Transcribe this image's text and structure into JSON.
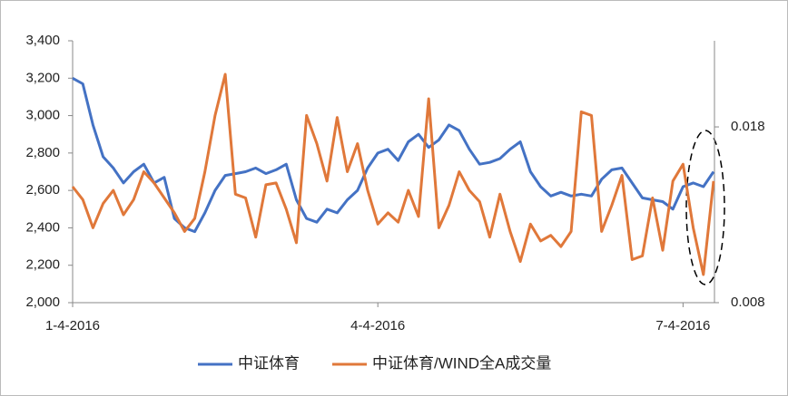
{
  "chart_data": {
    "type": "line",
    "categories": [
      "1-4-2016",
      null,
      null,
      null,
      null,
      null,
      null,
      null,
      null,
      null,
      null,
      null,
      null,
      null,
      null,
      null,
      null,
      null,
      null,
      null,
      null,
      null,
      null,
      null,
      null,
      null,
      null,
      null,
      null,
      null,
      "4-4-2016",
      null,
      null,
      null,
      null,
      null,
      null,
      null,
      null,
      null,
      null,
      null,
      null,
      null,
      null,
      null,
      null,
      null,
      null,
      null,
      null,
      null,
      null,
      null,
      null,
      null,
      null,
      null,
      null,
      null,
      "7-4-2016",
      null,
      null,
      null
    ],
    "series": [
      {
        "name": "中证体育",
        "color": "#4472c4",
        "axis": "y",
        "values": [
          3200,
          3170,
          2950,
          2780,
          2720,
          2640,
          2700,
          2740,
          2640,
          2670,
          2450,
          2400,
          2380,
          2480,
          2600,
          2680,
          2690,
          2700,
          2720,
          2690,
          2710,
          2740,
          2550,
          2450,
          2430,
          2500,
          2480,
          2550,
          2600,
          2720,
          2800,
          2820,
          2760,
          2860,
          2900,
          2830,
          2870,
          2950,
          2920,
          2820,
          2740,
          2750,
          2770,
          2820,
          2860,
          2700,
          2620,
          2570,
          2590,
          2570,
          2580,
          2570,
          2660,
          2710,
          2720,
          2640,
          2560,
          2550,
          2540,
          2500,
          2620,
          2640,
          2620,
          2700
        ]
      },
      {
        "name": "中证体育/WIND全A成交量",
        "color": "#e0783a",
        "axis": "y2",
        "values": [
          0.0146,
          0.01386,
          0.01226,
          0.01364,
          0.01439,
          0.013,
          0.01386,
          0.01545,
          0.01481,
          0.01396,
          0.01311,
          0.01205,
          0.01279,
          0.01545,
          0.01865,
          0.02099,
          0.01417,
          0.01396,
          0.01173,
          0.01471,
          0.01481,
          0.01332,
          0.01141,
          0.01865,
          0.01705,
          0.01492,
          0.01854,
          0.01545,
          0.01705,
          0.01439,
          0.01247,
          0.01311,
          0.01258,
          0.01439,
          0.0129,
          0.0196,
          0.01226,
          0.01354,
          0.01545,
          0.01439,
          0.01375,
          0.01173,
          0.01417,
          0.01205,
          0.01034,
          0.01247,
          0.01151,
          0.01183,
          0.01119,
          0.01205,
          0.01886,
          0.01865,
          0.01205,
          0.01354,
          0.01524,
          0.01045,
          0.01066,
          0.01396,
          0.01098,
          0.01492,
          0.01588,
          0.01226,
          0.0096,
          0.01492
        ]
      }
    ],
    "ylim": [
      2000,
      3400
    ],
    "yticks": [
      {
        "value": 2000,
        "label": "2,000"
      },
      {
        "value": 2200,
        "label": "2,200"
      },
      {
        "value": 2400,
        "label": "2,400"
      },
      {
        "value": 2600,
        "label": "2,600"
      },
      {
        "value": 2800,
        "label": "2,800"
      },
      {
        "value": 3000,
        "label": "3,000"
      },
      {
        "value": 3200,
        "label": "3,200"
      },
      {
        "value": 3400,
        "label": "3,400"
      }
    ],
    "y2lim": [
      0.008,
      0.0229
    ],
    "y2ticks": [
      0.008,
      0.018
    ],
    "legend": "bottom"
  }
}
